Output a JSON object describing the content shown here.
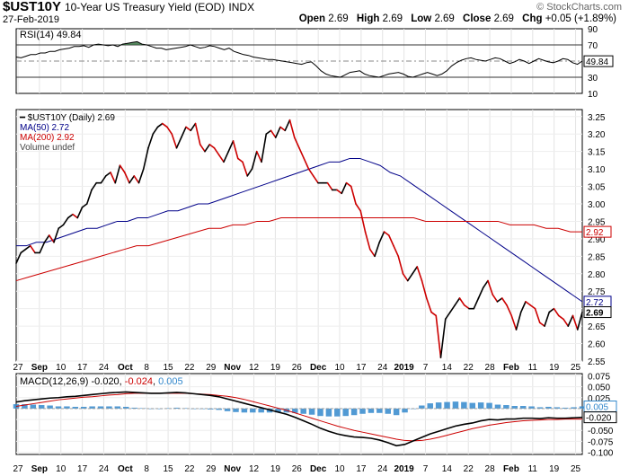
{
  "header": {
    "symbol": "$UST10Y",
    "description": "10-Year US Treasury Yield (EOD)",
    "exchange": "INDX",
    "date": "27-Feb-2019",
    "logo": "© StockCharts.com",
    "open_label": "Open",
    "open": "2.69",
    "high_label": "High",
    "high": "2.69",
    "low_label": "Low",
    "low": "2.69",
    "close_label": "Close",
    "close": "2.69",
    "chg_label": "Chg",
    "chg": "+0.05 (+1.89%)"
  },
  "chart_data": {
    "type": "line",
    "title": "$UST10Y 10-Year US Treasury Yield (EOD) INDX",
    "x_axis_labels": [
      "27",
      "Sep",
      "10",
      "17",
      "24",
      "Oct",
      "8",
      "15",
      "22",
      "29",
      "Nov",
      "12",
      "19",
      "26",
      "Dec",
      "10",
      "17",
      "24",
      "2019",
      "7",
      "14",
      "22",
      "28",
      "Feb",
      "11",
      "19",
      "25"
    ],
    "panels": [
      {
        "name": "RSI",
        "legend": "RSI(14) 49.84",
        "current_value": "49.84",
        "y_ticks": [
          "90",
          "70",
          "50",
          "30",
          "10"
        ],
        "reference_levels": [
          70,
          50,
          30
        ],
        "ylim": [
          10,
          90
        ],
        "series": [
          {
            "name": "RSI(14)",
            "color": "#000000",
            "values": [
              55,
              54,
              56,
              58,
              58,
              60,
              60,
              62,
              62,
              64,
              65,
              66,
              68,
              68,
              69,
              67,
              70,
              71,
              70,
              69,
              70,
              68,
              71,
              72,
              73,
              74,
              71,
              70,
              68,
              66,
              66,
              64,
              65,
              66,
              67,
              68,
              70,
              68,
              66,
              67,
              69,
              68,
              66,
              64,
              66,
              62,
              60,
              58,
              57,
              55,
              54,
              53,
              52,
              52,
              51,
              50,
              49,
              48,
              47,
              46,
              48,
              49,
              44,
              38,
              34,
              32,
              31,
              30,
              33,
              36,
              37,
              38,
              34,
              32,
              31,
              30,
              32,
              34,
              35,
              36,
              34,
              31,
              30,
              32,
              34,
              36,
              34,
              32,
              34,
              38,
              44,
              48,
              51,
              53,
              54,
              52,
              51,
              50,
              52,
              54,
              53,
              50,
              47,
              49,
              52,
              50,
              47,
              50,
              53,
              51,
              49,
              48,
              50,
              53,
              52,
              48,
              46,
              50
            ]
          }
        ]
      },
      {
        "name": "Price",
        "legend_price": "$UST10Y (Daily) 2.69",
        "legend_ma50": "MA(50) 2.72",
        "legend_ma200": "MA(200) 2.92",
        "legend_volume": "Volume undef",
        "ylim": [
          2.55,
          3.27
        ],
        "y_ticks": [
          "3.25",
          "3.20",
          "3.15",
          "3.10",
          "3.05",
          "3.00",
          "2.95",
          "2.90",
          "2.85",
          "2.80",
          "2.75",
          "2.70",
          "2.65",
          "2.60",
          "2.55"
        ],
        "value_tags": [
          {
            "label": "2.92",
            "value": 2.92,
            "color": "#cc0000"
          },
          {
            "label": "2.72",
            "value": 2.72,
            "color": "#000088"
          },
          {
            "label": "2.69",
            "value": 2.69,
            "color": "#000000"
          }
        ],
        "series": [
          {
            "name": "$UST10Y",
            "colors": [
              "#000000",
              "#cc0000"
            ],
            "values": [
              2.83,
              2.86,
              2.87,
              2.88,
              2.86,
              2.86,
              2.89,
              2.91,
              2.89,
              2.93,
              2.94,
              2.96,
              2.97,
              2.96,
              2.99,
              3.0,
              3.04,
              3.06,
              3.06,
              3.08,
              3.09,
              3.06,
              3.11,
              3.09,
              3.06,
              3.08,
              3.06,
              3.1,
              3.16,
              3.2,
              3.22,
              3.23,
              3.22,
              3.2,
              3.16,
              3.19,
              3.22,
              3.21,
              3.23,
              3.17,
              3.15,
              3.17,
              3.16,
              3.14,
              3.12,
              3.15,
              3.18,
              3.13,
              3.12,
              3.08,
              3.1,
              3.15,
              3.12,
              3.2,
              3.21,
              3.19,
              3.22,
              3.21,
              3.24,
              3.19,
              3.16,
              3.13,
              3.1,
              3.08,
              3.06,
              3.06,
              3.06,
              3.04,
              3.04,
              3.03,
              3.06,
              3.05,
              3.0,
              2.98,
              2.92,
              2.87,
              2.85,
              2.89,
              2.92,
              2.91,
              2.88,
              2.85,
              2.8,
              2.78,
              2.8,
              2.82,
              2.78,
              2.73,
              2.69,
              2.68,
              2.56,
              2.67,
              2.69,
              2.71,
              2.73,
              2.71,
              2.7,
              2.7,
              2.73,
              2.76,
              2.78,
              2.74,
              2.72,
              2.73,
              2.71,
              2.68,
              2.64,
              2.69,
              2.72,
              2.71,
              2.7,
              2.66,
              2.65,
              2.69,
              2.7,
              2.68,
              2.67,
              2.65,
              2.68,
              2.64,
              2.69
            ]
          },
          {
            "name": "MA(50)",
            "color": "#000088",
            "values": [
              2.88,
              2.88,
              2.89,
              2.89,
              2.9,
              2.91,
              2.92,
              2.93,
              2.93,
              2.94,
              2.95,
              2.95,
              2.96,
              2.96,
              2.97,
              2.98,
              2.98,
              2.99,
              3.0,
              3.0,
              3.01,
              3.02,
              3.03,
              3.04,
              3.05,
              3.06,
              3.07,
              3.08,
              3.09,
              3.1,
              3.11,
              3.12,
              3.12,
              3.13,
              3.13,
              3.12,
              3.11,
              3.09,
              3.08,
              3.06,
              3.04,
              3.02,
              3.0,
              2.98,
              2.96,
              2.94,
              2.92,
              2.9,
              2.88,
              2.86,
              2.84,
              2.82,
              2.8,
              2.78,
              2.76,
              2.74,
              2.72
            ]
          },
          {
            "name": "MA(200)",
            "color": "#cc0000",
            "values": [
              2.78,
              2.79,
              2.8,
              2.81,
              2.82,
              2.83,
              2.84,
              2.85,
              2.86,
              2.87,
              2.88,
              2.88,
              2.89,
              2.9,
              2.91,
              2.92,
              2.93,
              2.93,
              2.94,
              2.94,
              2.95,
              2.95,
              2.96,
              2.96,
              2.96,
              2.96,
              2.96,
              2.96,
              2.96,
              2.96,
              2.96,
              2.96,
              2.96,
              2.96,
              2.95,
              2.95,
              2.95,
              2.95,
              2.95,
              2.95,
              2.95,
              2.94,
              2.94,
              2.94,
              2.93,
              2.93,
              2.92,
              2.92
            ]
          }
        ]
      },
      {
        "name": "MACD",
        "legend_prefix": "MACD(12,26,9)",
        "legend_macd": "-0.020",
        "legend_signal": "-0.024",
        "legend_hist": "0.005",
        "ylim": [
          -0.1,
          0.075
        ],
        "y_ticks": [
          "0.075",
          "0.050",
          "0.025",
          "0.000",
          "-0.025",
          "-0.050",
          "-0.075",
          "-0.100"
        ],
        "value_tags": [
          {
            "label": "0.005",
            "value": 0.005,
            "color": "#3388cc"
          },
          {
            "label": "-0.020",
            "value": -0.02,
            "color": "#000000"
          }
        ],
        "series": [
          {
            "name": "MACD",
            "color": "#000000",
            "values": [
              0.015,
              0.018,
              0.02,
              0.022,
              0.024,
              0.025,
              0.027,
              0.028,
              0.03,
              0.032,
              0.034,
              0.036,
              0.037,
              0.038,
              0.037,
              0.036,
              0.035,
              0.035,
              0.036,
              0.037,
              0.036,
              0.034,
              0.032,
              0.03,
              0.027,
              0.022,
              0.017,
              0.012,
              0.007,
              0.002,
              -0.003,
              -0.008,
              -0.013,
              -0.02,
              -0.028,
              -0.036,
              -0.045,
              -0.052,
              -0.058,
              -0.062,
              -0.065,
              -0.066,
              -0.068,
              -0.072,
              -0.078,
              -0.085,
              -0.082,
              -0.074,
              -0.066,
              -0.058,
              -0.052,
              -0.046,
              -0.04,
              -0.036,
              -0.033,
              -0.028,
              -0.025,
              -0.026,
              -0.024,
              -0.024,
              -0.022,
              -0.022,
              -0.023,
              -0.021,
              -0.022,
              -0.022,
              -0.021,
              -0.02
            ]
          },
          {
            "name": "Signal",
            "color": "#cc0000",
            "values": [
              0.005,
              0.008,
              0.011,
              0.014,
              0.017,
              0.02,
              0.022,
              0.024,
              0.026,
              0.027,
              0.029,
              0.031,
              0.032,
              0.034,
              0.035,
              0.035,
              0.035,
              0.035,
              0.035,
              0.035,
              0.035,
              0.034,
              0.033,
              0.032,
              0.03,
              0.028,
              0.025,
              0.021,
              0.016,
              0.011,
              0.006,
              0.001,
              -0.004,
              -0.01,
              -0.016,
              -0.022,
              -0.028,
              -0.034,
              -0.04,
              -0.045,
              -0.05,
              -0.054,
              -0.058,
              -0.062,
              -0.066,
              -0.07,
              -0.073,
              -0.074,
              -0.073,
              -0.07,
              -0.066,
              -0.061,
              -0.056,
              -0.051,
              -0.046,
              -0.042,
              -0.038,
              -0.035,
              -0.032,
              -0.03,
              -0.028,
              -0.027,
              -0.026,
              -0.025,
              -0.025,
              -0.024,
              -0.024,
              -0.024
            ]
          },
          {
            "name": "Histogram",
            "color": "#3388cc",
            "values": [
              0.01,
              0.01,
              0.009,
              0.008,
              0.007,
              0.005,
              0.005,
              0.004,
              0.004,
              0.005,
              0.005,
              0.005,
              0.005,
              0.004,
              0.002,
              0.001,
              0.0,
              0.0,
              0.001,
              0.002,
              0.001,
              0.0,
              -0.001,
              -0.002,
              -0.003,
              -0.006,
              -0.008,
              -0.009,
              -0.009,
              -0.009,
              -0.009,
              -0.009,
              -0.009,
              -0.01,
              -0.012,
              -0.014,
              -0.017,
              -0.018,
              -0.018,
              -0.017,
              -0.015,
              -0.012,
              -0.01,
              -0.01,
              -0.012,
              -0.015,
              -0.009,
              0.0,
              0.007,
              0.012,
              0.014,
              0.015,
              0.016,
              0.015,
              0.013,
              0.014,
              0.013,
              0.009,
              0.008,
              0.006,
              0.006,
              0.005,
              0.003,
              0.004,
              0.003,
              0.002,
              0.003,
              0.005
            ]
          }
        ]
      }
    ]
  }
}
